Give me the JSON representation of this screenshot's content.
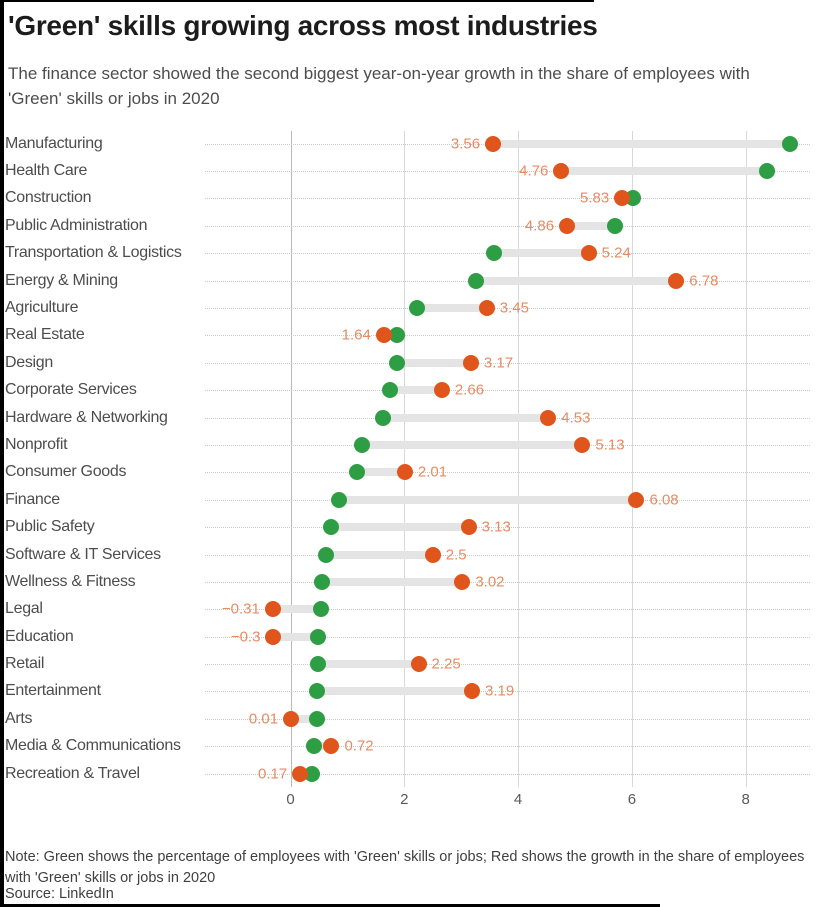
{
  "header": {
    "title": "'Green' skills growing across most industries",
    "subtitle": "The finance sector showed the second biggest year-on-year growth in the share of employees with 'Green' skills or jobs in 2020"
  },
  "footer": {
    "note": "Note: Green shows the percentage of employees with 'Green' skills or jobs; Red shows the growth in the share of employees with 'Green' skills or jobs in 2020",
    "source": "Source: LinkedIn"
  },
  "colors": {
    "green_dot": "#2e9e44",
    "red_dot": "#e0551b",
    "value_label": "#e78b62",
    "connector_bar": "#e4e4e4"
  },
  "chart_data": {
    "type": "dumbbell",
    "title": "'Green' skills growing across most industries",
    "xlabel": "",
    "ylabel": "",
    "xlim": [
      -1.5,
      9.15
    ],
    "x_ticks": [
      0,
      2,
      4,
      6,
      8
    ],
    "grid": "vertical solid gridlines, dotted horizontal row guides",
    "legend_position": "none",
    "categories": [
      "Manufacturing",
      "Health Care",
      "Construction",
      "Public Administration",
      "Transportation & Logistics",
      "Energy & Mining",
      "Agriculture",
      "Real Estate",
      "Design",
      "Corporate Services",
      "Hardware & Networking",
      "Nonprofit",
      "Consumer Goods",
      "Finance",
      "Public Safety",
      "Software & IT Services",
      "Wellness & Fitness",
      "Legal",
      "Education",
      "Retail",
      "Entertainment",
      "Arts",
      "Media & Communications",
      "Recreation & Travel"
    ],
    "series": [
      {
        "name": "Share of employees with 'Green' skills or jobs (green)",
        "color": "#2e9e44",
        "values": [
          8.77,
          8.38,
          6.02,
          5.7,
          3.58,
          3.26,
          2.22,
          1.88,
          1.87,
          1.75,
          1.62,
          1.26,
          1.17,
          0.85,
          0.71,
          0.63,
          0.56,
          0.53,
          0.48,
          0.48,
          0.47,
          0.47,
          0.42,
          0.37
        ]
      },
      {
        "name": "Year-on-year growth in share, 2020 (red)",
        "color": "#e0551b",
        "values": [
          3.56,
          4.76,
          5.83,
          4.86,
          5.24,
          6.78,
          3.45,
          1.64,
          3.17,
          2.66,
          4.53,
          5.13,
          2.01,
          6.08,
          3.13,
          2.5,
          3.02,
          -0.31,
          -0.3,
          2.25,
          3.19,
          0.01,
          0.72,
          0.17
        ],
        "labels": [
          "3.56",
          "4.76",
          "5.83",
          "4.86",
          "5.24",
          "6.78",
          "3.45",
          "1.64",
          "3.17",
          "2.66",
          "4.53",
          "5.13",
          "2.01",
          "6.08",
          "3.13",
          "2.5",
          "3.02",
          "−0.31",
          "−0.3",
          "2.25",
          "3.19",
          "0.01",
          "0.72",
          "0.17"
        ]
      }
    ]
  }
}
